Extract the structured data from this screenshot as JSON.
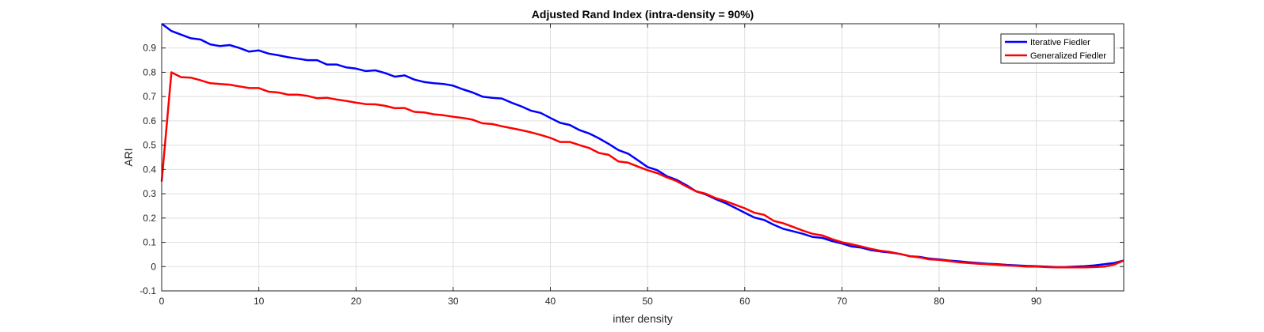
{
  "chart_data": {
    "type": "line",
    "title": "Adjusted Rand Index (intra-density = 90%)",
    "xlabel": "inter density",
    "ylabel": "ARI",
    "xlim": [
      0,
      99
    ],
    "ylim": [
      -0.1,
      1.0
    ],
    "xticks": [
      "0",
      "10",
      "20",
      "30",
      "40",
      "50",
      "60",
      "70",
      "80",
      "90"
    ],
    "yticks": [
      "-0.1",
      "0",
      "0.1",
      "0.2",
      "0.3",
      "0.4",
      "0.5",
      "0.6",
      "0.7",
      "0.8",
      "0.9"
    ],
    "grid": true,
    "legend_position": "top-right",
    "series": [
      {
        "name": "Iterative Fiedler",
        "color": "#0000ff",
        "points": [
          [
            0,
            1.0
          ],
          [
            1,
            0.97
          ],
          [
            2,
            0.955
          ],
          [
            3,
            0.94
          ],
          [
            4,
            0.935
          ],
          [
            5,
            0.915
          ],
          [
            6,
            0.908
          ],
          [
            7,
            0.912
          ],
          [
            8,
            0.9
          ],
          [
            9,
            0.885
          ],
          [
            10,
            0.89
          ],
          [
            11,
            0.877
          ],
          [
            12,
            0.87
          ],
          [
            13,
            0.862
          ],
          [
            14,
            0.856
          ],
          [
            15,
            0.85
          ],
          [
            16,
            0.85
          ],
          [
            17,
            0.832
          ],
          [
            18,
            0.832
          ],
          [
            19,
            0.82
          ],
          [
            20,
            0.815
          ],
          [
            21,
            0.805
          ],
          [
            22,
            0.808
          ],
          [
            23,
            0.797
          ],
          [
            24,
            0.782
          ],
          [
            25,
            0.787
          ],
          [
            26,
            0.77
          ],
          [
            27,
            0.76
          ],
          [
            28,
            0.755
          ],
          [
            29,
            0.752
          ],
          [
            30,
            0.745
          ],
          [
            31,
            0.73
          ],
          [
            32,
            0.717
          ],
          [
            33,
            0.7
          ],
          [
            34,
            0.695
          ],
          [
            35,
            0.692
          ],
          [
            36,
            0.675
          ],
          [
            37,
            0.66
          ],
          [
            38,
            0.642
          ],
          [
            39,
            0.633
          ],
          [
            40,
            0.612
          ],
          [
            41,
            0.592
          ],
          [
            42,
            0.583
          ],
          [
            43,
            0.562
          ],
          [
            44,
            0.548
          ],
          [
            45,
            0.528
          ],
          [
            46,
            0.505
          ],
          [
            47,
            0.48
          ],
          [
            48,
            0.465
          ],
          [
            49,
            0.438
          ],
          [
            50,
            0.41
          ],
          [
            51,
            0.397
          ],
          [
            52,
            0.372
          ],
          [
            53,
            0.357
          ],
          [
            54,
            0.335
          ],
          [
            55,
            0.31
          ],
          [
            56,
            0.297
          ],
          [
            57,
            0.278
          ],
          [
            58,
            0.262
          ],
          [
            59,
            0.242
          ],
          [
            60,
            0.222
          ],
          [
            61,
            0.202
          ],
          [
            62,
            0.192
          ],
          [
            63,
            0.172
          ],
          [
            64,
            0.155
          ],
          [
            65,
            0.145
          ],
          [
            66,
            0.135
          ],
          [
            67,
            0.122
          ],
          [
            68,
            0.118
          ],
          [
            69,
            0.105
          ],
          [
            70,
            0.095
          ],
          [
            71,
            0.083
          ],
          [
            72,
            0.078
          ],
          [
            73,
            0.068
          ],
          [
            74,
            0.062
          ],
          [
            75,
            0.058
          ],
          [
            76,
            0.052
          ],
          [
            77,
            0.043
          ],
          [
            78,
            0.04
          ],
          [
            79,
            0.033
          ],
          [
            80,
            0.03
          ],
          [
            81,
            0.025
          ],
          [
            82,
            0.022
          ],
          [
            83,
            0.018
          ],
          [
            84,
            0.015
          ],
          [
            85,
            0.012
          ],
          [
            86,
            0.01
          ],
          [
            87,
            0.007
          ],
          [
            88,
            0.005
          ],
          [
            89,
            0.003
          ],
          [
            90,
            0.002
          ],
          [
            91,
            0.0
          ],
          [
            92,
            -0.002
          ],
          [
            93,
            -0.002
          ],
          [
            94,
            0.0
          ],
          [
            95,
            0.002
          ],
          [
            96,
            0.005
          ],
          [
            97,
            0.01
          ],
          [
            98,
            0.015
          ],
          [
            99,
            0.025
          ]
        ]
      },
      {
        "name": "Generalized Fiedler",
        "color": "#ff0000",
        "points": [
          [
            0,
            0.35
          ],
          [
            1,
            0.8
          ],
          [
            2,
            0.78
          ],
          [
            3,
            0.778
          ],
          [
            4,
            0.767
          ],
          [
            5,
            0.755
          ],
          [
            6,
            0.752
          ],
          [
            7,
            0.749
          ],
          [
            8,
            0.742
          ],
          [
            9,
            0.735
          ],
          [
            10,
            0.735
          ],
          [
            11,
            0.72
          ],
          [
            12,
            0.717
          ],
          [
            13,
            0.708
          ],
          [
            14,
            0.708
          ],
          [
            15,
            0.703
          ],
          [
            16,
            0.693
          ],
          [
            17,
            0.695
          ],
          [
            18,
            0.688
          ],
          [
            19,
            0.682
          ],
          [
            20,
            0.675
          ],
          [
            21,
            0.669
          ],
          [
            22,
            0.668
          ],
          [
            23,
            0.662
          ],
          [
            24,
            0.652
          ],
          [
            25,
            0.653
          ],
          [
            26,
            0.637
          ],
          [
            27,
            0.635
          ],
          [
            28,
            0.627
          ],
          [
            29,
            0.623
          ],
          [
            30,
            0.617
          ],
          [
            31,
            0.612
          ],
          [
            32,
            0.605
          ],
          [
            33,
            0.59
          ],
          [
            34,
            0.587
          ],
          [
            35,
            0.578
          ],
          [
            36,
            0.57
          ],
          [
            37,
            0.562
          ],
          [
            38,
            0.553
          ],
          [
            39,
            0.542
          ],
          [
            40,
            0.53
          ],
          [
            41,
            0.513
          ],
          [
            42,
            0.513
          ],
          [
            43,
            0.5
          ],
          [
            44,
            0.488
          ],
          [
            45,
            0.468
          ],
          [
            46,
            0.46
          ],
          [
            47,
            0.433
          ],
          [
            48,
            0.428
          ],
          [
            49,
            0.412
          ],
          [
            50,
            0.397
          ],
          [
            51,
            0.385
          ],
          [
            52,
            0.367
          ],
          [
            53,
            0.352
          ],
          [
            54,
            0.33
          ],
          [
            55,
            0.31
          ],
          [
            56,
            0.3
          ],
          [
            57,
            0.282
          ],
          [
            58,
            0.27
          ],
          [
            59,
            0.255
          ],
          [
            60,
            0.24
          ],
          [
            61,
            0.222
          ],
          [
            62,
            0.213
          ],
          [
            63,
            0.188
          ],
          [
            64,
            0.178
          ],
          [
            65,
            0.163
          ],
          [
            66,
            0.148
          ],
          [
            67,
            0.135
          ],
          [
            68,
            0.128
          ],
          [
            69,
            0.113
          ],
          [
            70,
            0.1
          ],
          [
            71,
            0.092
          ],
          [
            72,
            0.083
          ],
          [
            73,
            0.073
          ],
          [
            74,
            0.065
          ],
          [
            75,
            0.06
          ],
          [
            76,
            0.052
          ],
          [
            77,
            0.043
          ],
          [
            78,
            0.038
          ],
          [
            79,
            0.03
          ],
          [
            80,
            0.028
          ],
          [
            81,
            0.023
          ],
          [
            82,
            0.018
          ],
          [
            83,
            0.015
          ],
          [
            84,
            0.012
          ],
          [
            85,
            0.01
          ],
          [
            86,
            0.007
          ],
          [
            87,
            0.005
          ],
          [
            88,
            0.003
          ],
          [
            89,
            0.0
          ],
          [
            90,
            0.0
          ],
          [
            91,
            -0.002
          ],
          [
            92,
            -0.003
          ],
          [
            93,
            -0.003
          ],
          [
            94,
            -0.003
          ],
          [
            95,
            -0.003
          ],
          [
            96,
            -0.002
          ],
          [
            97,
            0.0
          ],
          [
            98,
            0.008
          ],
          [
            99,
            0.025
          ]
        ]
      }
    ]
  }
}
